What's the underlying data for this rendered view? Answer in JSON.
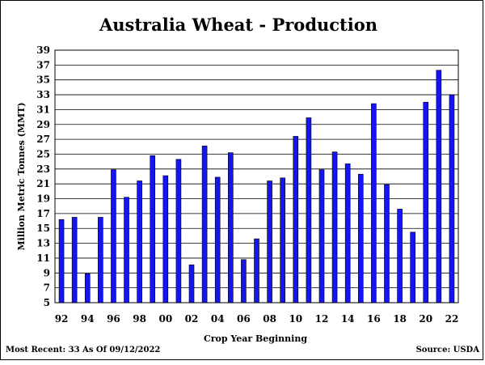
{
  "chart_data": {
    "type": "bar",
    "title": "Australia Wheat - Production",
    "xlabel": "Crop Year Beginning",
    "ylabel": "Million Metric Tonnes (MMT)",
    "ylim": [
      5,
      39
    ],
    "yticks": [
      5,
      7,
      9,
      11,
      13,
      15,
      17,
      19,
      21,
      23,
      25,
      27,
      29,
      31,
      33,
      35,
      37,
      39
    ],
    "grid": "horizontal",
    "bar_color": "#1515f2",
    "categories": [
      "92",
      "93",
      "94",
      "95",
      "96",
      "97",
      "98",
      "99",
      "00",
      "01",
      "02",
      "03",
      "04",
      "05",
      "06",
      "07",
      "08",
      "09",
      "10",
      "11",
      "12",
      "13",
      "14",
      "15",
      "16",
      "17",
      "18",
      "19",
      "20",
      "21",
      "22"
    ],
    "xtick_labels": [
      "92",
      "94",
      "96",
      "98",
      "00",
      "02",
      "04",
      "06",
      "08",
      "10",
      "12",
      "14",
      "16",
      "18",
      "20",
      "22"
    ],
    "values": [
      16.2,
      16.5,
      8.9,
      16.5,
      22.9,
      19.2,
      21.4,
      24.8,
      22.1,
      24.3,
      10.1,
      26.1,
      21.9,
      25.2,
      10.8,
      13.6,
      21.4,
      21.8,
      27.4,
      29.9,
      22.9,
      25.3,
      23.7,
      22.3,
      31.8,
      20.9,
      17.6,
      14.5,
      32.0,
      36.3,
      33.0
    ]
  },
  "footer": {
    "left": "Most Recent: 33 As Of 09/12/2022",
    "right": "Source: USDA"
  }
}
